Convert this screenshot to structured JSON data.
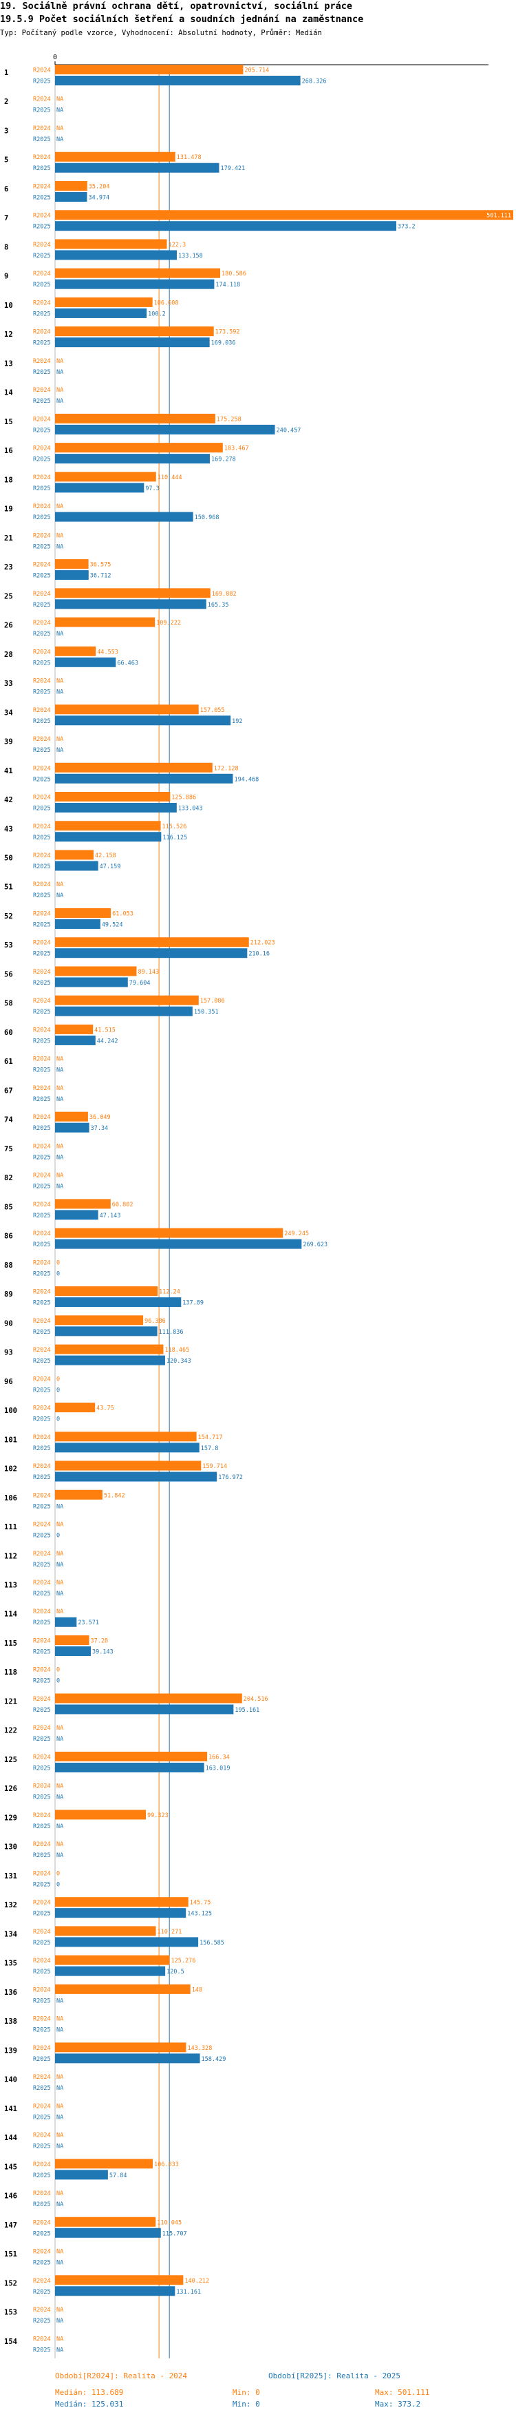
{
  "header": {
    "title_line1": "19. Sociálně právní ochrana dětí, opatrovnictví, sociální práce",
    "title_line2": "19.5.9 Počet sociálních šetření a soudních jednání na zaměstnance",
    "subtitle": "Typ: Počítaný podle vzorce, Vyhodnocení: Absolutní hodnoty, Průměr: Medián"
  },
  "chart_data": {
    "type": "bar",
    "orientation": "horizontal",
    "title": "19.5.9 Počet sociálních šetření a soudních jednání na zaměstnance",
    "axis_zero_label": "0",
    "xlim": [
      0,
      501.111
    ],
    "reference_lines": {
      "median_2024": 113.689,
      "median_2025": 125.031
    },
    "series": [
      {
        "name": "R2024",
        "color": "#ff7f0e"
      },
      {
        "name": "R2025",
        "color": "#1f77b4"
      }
    ],
    "categories": [
      {
        "label": "1",
        "r2024": 205.714,
        "r2024_text": "205.714",
        "r2025": 268.326,
        "r2025_text": "268.326"
      },
      {
        "label": "2",
        "r2024": null,
        "r2024_text": "NA",
        "r2025": null,
        "r2025_text": "NA"
      },
      {
        "label": "3",
        "r2024": null,
        "r2024_text": "NA",
        "r2025": null,
        "r2025_text": "NA"
      },
      {
        "label": "5",
        "r2024": 131.478,
        "r2024_text": "131.478",
        "r2025": 179.421,
        "r2025_text": "179.421"
      },
      {
        "label": "6",
        "r2024": 35.204,
        "r2024_text": "35.204",
        "r2025": 34.974,
        "r2025_text": "34.974"
      },
      {
        "label": "7",
        "r2024": 501.111,
        "r2024_text": "501.111",
        "r2025": 373.2,
        "r2025_text": "373.2"
      },
      {
        "label": "8",
        "r2024": 122.3,
        "r2024_text": "122.3",
        "r2025": 133.158,
        "r2025_text": "133.158"
      },
      {
        "label": "9",
        "r2024": 180.586,
        "r2024_text": "180.586",
        "r2025": 174.118,
        "r2025_text": "174.118"
      },
      {
        "label": "10",
        "r2024": 106.608,
        "r2024_text": "106.608",
        "r2025": 100.2,
        "r2025_text": "100.2"
      },
      {
        "label": "12",
        "r2024": 173.592,
        "r2024_text": "173.592",
        "r2025": 169.036,
        "r2025_text": "169.036"
      },
      {
        "label": "13",
        "r2024": null,
        "r2024_text": "NA",
        "r2025": null,
        "r2025_text": "NA"
      },
      {
        "label": "14",
        "r2024": null,
        "r2024_text": "NA",
        "r2025": null,
        "r2025_text": "NA"
      },
      {
        "label": "15",
        "r2024": 175.258,
        "r2024_text": "175.258",
        "r2025": 240.457,
        "r2025_text": "240.457"
      },
      {
        "label": "16",
        "r2024": 183.467,
        "r2024_text": "183.467",
        "r2025": 169.278,
        "r2025_text": "169.278"
      },
      {
        "label": "18",
        "r2024": 110.444,
        "r2024_text": "110.444",
        "r2025": 97.3,
        "r2025_text": "97.3"
      },
      {
        "label": "19",
        "r2024": null,
        "r2024_text": "NA",
        "r2025": 150.968,
        "r2025_text": "150.968"
      },
      {
        "label": "21",
        "r2024": null,
        "r2024_text": "NA",
        "r2025": null,
        "r2025_text": "NA"
      },
      {
        "label": "23",
        "r2024": 36.575,
        "r2024_text": "36.575",
        "r2025": 36.712,
        "r2025_text": "36.712"
      },
      {
        "label": "25",
        "r2024": 169.882,
        "r2024_text": "169.882",
        "r2025": 165.35,
        "r2025_text": "165.35"
      },
      {
        "label": "26",
        "r2024": 109.222,
        "r2024_text": "109.222",
        "r2025": null,
        "r2025_text": "NA"
      },
      {
        "label": "28",
        "r2024": 44.553,
        "r2024_text": "44.553",
        "r2025": 66.463,
        "r2025_text": "66.463"
      },
      {
        "label": "33",
        "r2024": null,
        "r2024_text": "NA",
        "r2025": null,
        "r2025_text": "NA"
      },
      {
        "label": "34",
        "r2024": 157.055,
        "r2024_text": "157.055",
        "r2025": 192,
        "r2025_text": "192"
      },
      {
        "label": "39",
        "r2024": null,
        "r2024_text": "NA",
        "r2025": null,
        "r2025_text": "NA"
      },
      {
        "label": "41",
        "r2024": 172.128,
        "r2024_text": "172.128",
        "r2025": 194.468,
        "r2025_text": "194.468"
      },
      {
        "label": "42",
        "r2024": 125.886,
        "r2024_text": "125.886",
        "r2025": 133.043,
        "r2025_text": "133.043"
      },
      {
        "label": "43",
        "r2024": 115.526,
        "r2024_text": "115.526",
        "r2025": 116.125,
        "r2025_text": "116.125"
      },
      {
        "label": "50",
        "r2024": 42.158,
        "r2024_text": "42.158",
        "r2025": 47.159,
        "r2025_text": "47.159"
      },
      {
        "label": "51",
        "r2024": null,
        "r2024_text": "NA",
        "r2025": null,
        "r2025_text": "NA"
      },
      {
        "label": "52",
        "r2024": 61.053,
        "r2024_text": "61.053",
        "r2025": 49.524,
        "r2025_text": "49.524"
      },
      {
        "label": "53",
        "r2024": 212.023,
        "r2024_text": "212.023",
        "r2025": 210.16,
        "r2025_text": "210.16"
      },
      {
        "label": "56",
        "r2024": 89.143,
        "r2024_text": "89.143",
        "r2025": 79.604,
        "r2025_text": "79.604"
      },
      {
        "label": "58",
        "r2024": 157.086,
        "r2024_text": "157.086",
        "r2025": 150.351,
        "r2025_text": "150.351"
      },
      {
        "label": "60",
        "r2024": 41.515,
        "r2024_text": "41.515",
        "r2025": 44.242,
        "r2025_text": "44.242"
      },
      {
        "label": "61",
        "r2024": null,
        "r2024_text": "NA",
        "r2025": null,
        "r2025_text": "NA"
      },
      {
        "label": "67",
        "r2024": null,
        "r2024_text": "NA",
        "r2025": null,
        "r2025_text": "NA"
      },
      {
        "label": "74",
        "r2024": 36.049,
        "r2024_text": "36.049",
        "r2025": 37.34,
        "r2025_text": "37.34"
      },
      {
        "label": "75",
        "r2024": null,
        "r2024_text": "NA",
        "r2025": null,
        "r2025_text": "NA"
      },
      {
        "label": "82",
        "r2024": null,
        "r2024_text": "NA",
        "r2025": null,
        "r2025_text": "NA"
      },
      {
        "label": "85",
        "r2024": 60.802,
        "r2024_text": "60.802",
        "r2025": 47.143,
        "r2025_text": "47.143"
      },
      {
        "label": "86",
        "r2024": 249.245,
        "r2024_text": "249.245",
        "r2025": 269.623,
        "r2025_text": "269.623"
      },
      {
        "label": "88",
        "r2024": 0,
        "r2024_text": "0",
        "r2025": 0,
        "r2025_text": "0"
      },
      {
        "label": "89",
        "r2024": 112.24,
        "r2024_text": "112.24",
        "r2025": 137.89,
        "r2025_text": "137.89"
      },
      {
        "label": "90",
        "r2024": 96.386,
        "r2024_text": "96.386",
        "r2025": 111.836,
        "r2025_text": "111.836"
      },
      {
        "label": "93",
        "r2024": 118.465,
        "r2024_text": "118.465",
        "r2025": 120.343,
        "r2025_text": "120.343"
      },
      {
        "label": "96",
        "r2024": 0,
        "r2024_text": "0",
        "r2025": 0,
        "r2025_text": "0"
      },
      {
        "label": "100",
        "r2024": 43.75,
        "r2024_text": "43.75",
        "r2025": 0,
        "r2025_text": "0"
      },
      {
        "label": "101",
        "r2024": 154.717,
        "r2024_text": "154.717",
        "r2025": 157.8,
        "r2025_text": "157.8"
      },
      {
        "label": "102",
        "r2024": 159.714,
        "r2024_text": "159.714",
        "r2025": 176.972,
        "r2025_text": "176.972"
      },
      {
        "label": "106",
        "r2024": 51.842,
        "r2024_text": "51.842",
        "r2025": null,
        "r2025_text": "NA"
      },
      {
        "label": "111",
        "r2024": null,
        "r2024_text": "NA",
        "r2025": 0,
        "r2025_text": "0"
      },
      {
        "label": "112",
        "r2024": null,
        "r2024_text": "NA",
        "r2025": null,
        "r2025_text": "NA"
      },
      {
        "label": "113",
        "r2024": null,
        "r2024_text": "NA",
        "r2025": null,
        "r2025_text": "NA"
      },
      {
        "label": "114",
        "r2024": null,
        "r2024_text": "NA",
        "r2025": 23.571,
        "r2025_text": "23.571"
      },
      {
        "label": "115",
        "r2024": 37.28,
        "r2024_text": "37.28",
        "r2025": 39.143,
        "r2025_text": "39.143"
      },
      {
        "label": "118",
        "r2024": 0,
        "r2024_text": "0",
        "r2025": 0,
        "r2025_text": "0"
      },
      {
        "label": "121",
        "r2024": 204.516,
        "r2024_text": "204.516",
        "r2025": 195.161,
        "r2025_text": "195.161"
      },
      {
        "label": "122",
        "r2024": null,
        "r2024_text": "NA",
        "r2025": null,
        "r2025_text": "NA"
      },
      {
        "label": "125",
        "r2024": 166.34,
        "r2024_text": "166.34",
        "r2025": 163.019,
        "r2025_text": "163.019"
      },
      {
        "label": "126",
        "r2024": null,
        "r2024_text": "NA",
        "r2025": null,
        "r2025_text": "NA"
      },
      {
        "label": "129",
        "r2024": 99.323,
        "r2024_text": "99.323",
        "r2025": null,
        "r2025_text": "NA"
      },
      {
        "label": "130",
        "r2024": null,
        "r2024_text": "NA",
        "r2025": null,
        "r2025_text": "NA"
      },
      {
        "label": "131",
        "r2024": 0,
        "r2024_text": "0",
        "r2025": 0,
        "r2025_text": "0"
      },
      {
        "label": "132",
        "r2024": 145.75,
        "r2024_text": "145.75",
        "r2025": 143.125,
        "r2025_text": "143.125"
      },
      {
        "label": "134",
        "r2024": 110.271,
        "r2024_text": "110.271",
        "r2025": 156.585,
        "r2025_text": "156.585"
      },
      {
        "label": "135",
        "r2024": 125.276,
        "r2024_text": "125.276",
        "r2025": 120.5,
        "r2025_text": "120.5"
      },
      {
        "label": "136",
        "r2024": 148,
        "r2024_text": "148",
        "r2025": null,
        "r2025_text": "NA"
      },
      {
        "label": "138",
        "r2024": null,
        "r2024_text": "NA",
        "r2025": null,
        "r2025_text": "NA"
      },
      {
        "label": "139",
        "r2024": 143.328,
        "r2024_text": "143.328",
        "r2025": 158.429,
        "r2025_text": "158.429"
      },
      {
        "label": "140",
        "r2024": null,
        "r2024_text": "NA",
        "r2025": null,
        "r2025_text": "NA"
      },
      {
        "label": "141",
        "r2024": null,
        "r2024_text": "NA",
        "r2025": null,
        "r2025_text": "NA"
      },
      {
        "label": "144",
        "r2024": null,
        "r2024_text": "NA",
        "r2025": null,
        "r2025_text": "NA"
      },
      {
        "label": "145",
        "r2024": 106.833,
        "r2024_text": "106.833",
        "r2025": 57.84,
        "r2025_text": "57.84"
      },
      {
        "label": "146",
        "r2024": null,
        "r2024_text": "NA",
        "r2025": null,
        "r2025_text": "NA"
      },
      {
        "label": "147",
        "r2024": 110.045,
        "r2024_text": "110.045",
        "r2025": 115.707,
        "r2025_text": "115.707"
      },
      {
        "label": "151",
        "r2024": null,
        "r2024_text": "NA",
        "r2025": null,
        "r2025_text": "NA"
      },
      {
        "label": "152",
        "r2024": 140.212,
        "r2024_text": "140.212",
        "r2025": 131.161,
        "r2025_text": "131.161"
      },
      {
        "label": "153",
        "r2024": null,
        "r2024_text": "NA",
        "r2025": null,
        "r2025_text": "NA"
      },
      {
        "label": "154",
        "r2024": null,
        "r2024_text": "NA",
        "r2025": null,
        "r2025_text": "NA"
      }
    ]
  },
  "legend": {
    "r2024_label": "Období[R2024]: Realita - 2024",
    "r2025_label": "Období[R2025]: Realita - 2025",
    "r2024_median": "Medián: 113.689",
    "r2024_min": "Min: 0",
    "r2024_max": "Max: 501.111",
    "r2025_median": "Medián: 125.031",
    "r2025_min": "Min: 0",
    "r2025_max": "Max: 373.2"
  },
  "colors": {
    "r2024": "#ff7f0e",
    "r2025": "#1f77b4",
    "axis": "#000000"
  }
}
